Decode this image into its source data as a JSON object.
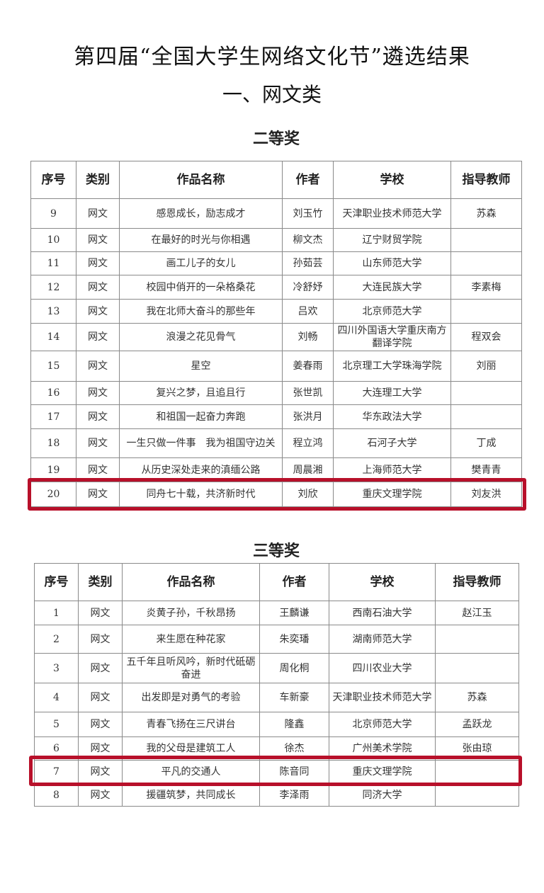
{
  "title": "第四届“全国大学生网络文化节”遴选结果",
  "section": "一、网文类",
  "columns": [
    "序号",
    "类别",
    "作品名称",
    "作者",
    "学校",
    "指导教师"
  ],
  "highlight_color": "#b8102a",
  "second_prize": {
    "label": "二等奖",
    "highlighted_row": "20",
    "rows": [
      [
        "9",
        "网文",
        "感恩成长，励志成才",
        "刘玉竹",
        "天津职业技术师范大学",
        "苏森"
      ],
      [
        "10",
        "网文",
        "在最好的时光与你相遇",
        "柳文杰",
        "辽宁财贸学院",
        ""
      ],
      [
        "11",
        "网文",
        "画工儿子的女儿",
        "孙茹芸",
        "山东师范大学",
        ""
      ],
      [
        "12",
        "网文",
        "校园中俏开的一朵格桑花",
        "冷舒妤",
        "大连民族大学",
        "李素梅"
      ],
      [
        "13",
        "网文",
        "我在北师大奋斗的那些年",
        "吕欢",
        "北京师范大学",
        ""
      ],
      [
        "14",
        "网文",
        "浪漫之花见骨气",
        "刘畅",
        "四川外国语大学重庆南方翻译学院",
        "程双会"
      ],
      [
        "15",
        "网文",
        "星空",
        "姜春雨",
        "北京理工大学珠海学院",
        "刘丽"
      ],
      [
        "16",
        "网文",
        "复兴之梦，且追且行",
        "张世凯",
        "大连理工大学",
        ""
      ],
      [
        "17",
        "网文",
        "和祖国一起奋力奔跑",
        "张洪月",
        "华东政法大学",
        ""
      ],
      [
        "18",
        "网文",
        "一生只做一件事　我为祖国守边关",
        "程立鸿",
        "石河子大学",
        "丁成"
      ],
      [
        "19",
        "网文",
        "从历史深处走来的滇缅公路",
        "周晨湘",
        "上海师范大学",
        "樊青青"
      ],
      [
        "20",
        "网文",
        "同舟七十载，共济新时代",
        "刘欣",
        "重庆文理学院",
        "刘友洪"
      ]
    ]
  },
  "third_prize": {
    "label": "三等奖",
    "highlighted_row": "7",
    "rows": [
      [
        "1",
        "网文",
        "炎黄子孙，千秋昂扬",
        "王麟谦",
        "西南石油大学",
        "赵江玉"
      ],
      [
        "2",
        "网文",
        "来生愿在种花家",
        "朱奕璠",
        "湖南师范大学",
        ""
      ],
      [
        "3",
        "网文",
        "五千年且听风吟，新时代砥砺奋进",
        "周化桐",
        "四川农业大学",
        ""
      ],
      [
        "4",
        "网文",
        "出发即是对勇气的考验",
        "车新豪",
        "天津职业技术师范大学",
        "苏森"
      ],
      [
        "5",
        "网文",
        "青春飞扬在三尺讲台",
        "隆鑫",
        "北京师范大学",
        "孟跃龙"
      ],
      [
        "6",
        "网文",
        "我的父母是建筑工人",
        "徐杰",
        "广州美术学院",
        "张由琼"
      ],
      [
        "7",
        "网文",
        "平凡的交通人",
        "陈音同",
        "重庆文理学院",
        ""
      ],
      [
        "8",
        "网文",
        "援疆筑梦，共同成长",
        "李泽雨",
        "同济大学",
        ""
      ]
    ]
  }
}
